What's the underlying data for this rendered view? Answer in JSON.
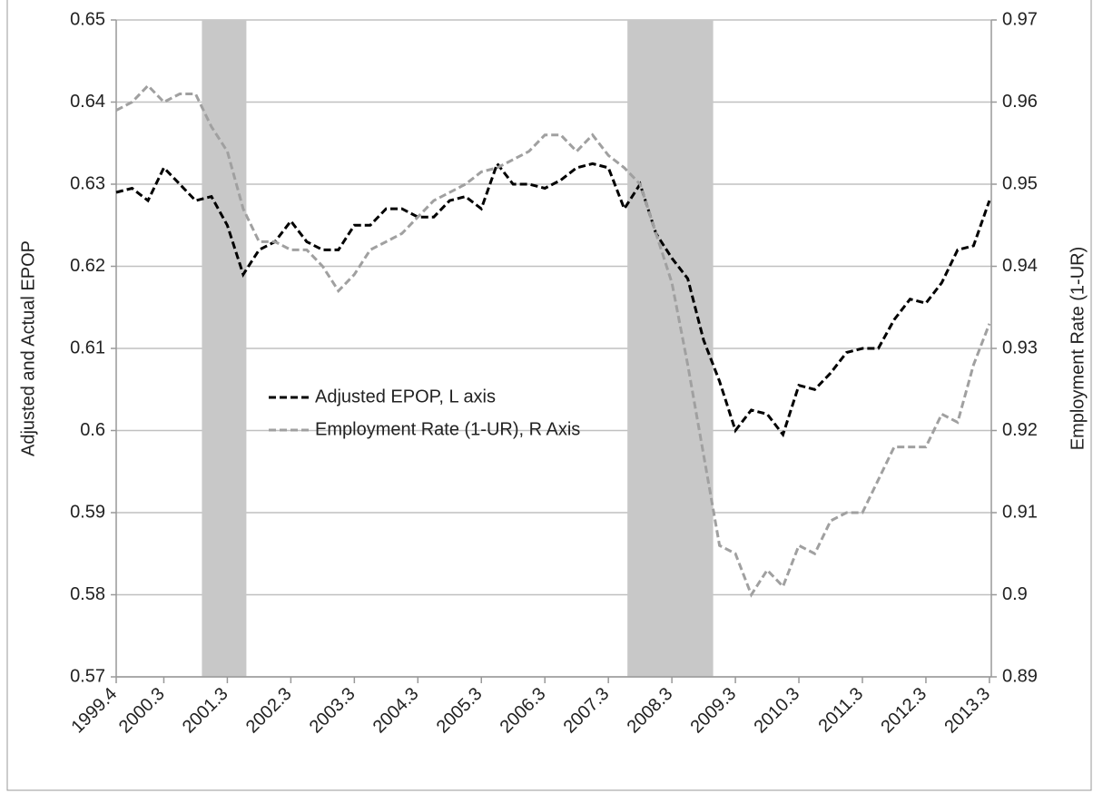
{
  "chart_data": {
    "type": "line",
    "ylabel": "Adjusted and Actual EPOP",
    "y2label": "Employment Rate (1-UR)",
    "x": [
      1999.75,
      2000.0,
      2000.25,
      2000.5,
      2000.75,
      2001.0,
      2001.25,
      2001.5,
      2001.75,
      2002.0,
      2002.25,
      2002.5,
      2002.75,
      2003.0,
      2003.25,
      2003.5,
      2003.75,
      2004.0,
      2004.25,
      2004.5,
      2004.75,
      2005.0,
      2005.25,
      2005.5,
      2005.75,
      2006.0,
      2006.25,
      2006.5,
      2006.75,
      2007.0,
      2007.25,
      2007.5,
      2007.75,
      2008.0,
      2008.25,
      2008.5,
      2008.75,
      2009.0,
      2009.25,
      2009.5,
      2009.75,
      2010.0,
      2010.25,
      2010.5,
      2010.75,
      2011.0,
      2011.25,
      2011.5,
      2011.75,
      2012.0,
      2012.25,
      2012.5,
      2012.75,
      2013.0,
      2013.25,
      2013.5
    ],
    "series": [
      {
        "name": "Adjusted EPOP, L axis",
        "color": "#000000",
        "axis": "y",
        "values": [
          0.629,
          0.6295,
          0.628,
          0.632,
          0.63,
          0.628,
          0.6285,
          0.625,
          0.619,
          0.622,
          0.623,
          0.6255,
          0.623,
          0.622,
          0.622,
          0.625,
          0.625,
          0.627,
          0.627,
          0.626,
          0.626,
          0.628,
          0.6285,
          0.627,
          0.6325,
          0.63,
          0.63,
          0.6295,
          0.6305,
          0.632,
          0.6325,
          0.632,
          0.627,
          0.63,
          0.624,
          0.621,
          0.6185,
          0.611,
          0.606,
          0.6,
          0.6025,
          0.602,
          0.5995,
          0.6055,
          0.605,
          0.607,
          0.6095,
          0.61,
          0.61,
          0.6135,
          0.616,
          0.6155,
          0.618,
          0.622,
          0.6225,
          0.628
        ]
      },
      {
        "name": "Employment Rate (1-UR), R Axis",
        "color": "#a0a0a0",
        "axis": "y2",
        "values": [
          0.959,
          0.96,
          0.962,
          0.96,
          0.961,
          0.961,
          0.957,
          0.954,
          0.947,
          0.943,
          0.943,
          0.942,
          0.942,
          0.94,
          0.937,
          0.939,
          0.942,
          0.943,
          0.944,
          0.946,
          0.948,
          0.949,
          0.95,
          0.9515,
          0.952,
          0.953,
          0.954,
          0.956,
          0.956,
          0.954,
          0.956,
          0.9535,
          0.952,
          0.95,
          0.944,
          0.938,
          0.928,
          0.917,
          0.906,
          0.905,
          0.9,
          0.903,
          0.901,
          0.906,
          0.905,
          0.909,
          0.91,
          0.91,
          0.914,
          0.918,
          0.918,
          0.918,
          0.922,
          0.921,
          0.928,
          0.933
        ]
      }
    ],
    "shaded_regions": [
      [
        2001.1,
        2001.8
      ],
      [
        2007.8,
        2009.15
      ]
    ],
    "shade_color": "#c8c8c8",
    "xlim": [
      1999.75,
      2013.53
    ],
    "xticks": [
      {
        "value": 1999.75,
        "label": "1999.4"
      },
      {
        "value": 2000.5,
        "label": "2000.3"
      },
      {
        "value": 2001.5,
        "label": "2001.3"
      },
      {
        "value": 2002.5,
        "label": "2002.3"
      },
      {
        "value": 2003.5,
        "label": "2003.3"
      },
      {
        "value": 2004.5,
        "label": "2004.3"
      },
      {
        "value": 2005.5,
        "label": "2005.3"
      },
      {
        "value": 2006.5,
        "label": "2006.3"
      },
      {
        "value": 2007.5,
        "label": "2007.3"
      },
      {
        "value": 2008.5,
        "label": "2008.3"
      },
      {
        "value": 2009.5,
        "label": "2009.3"
      },
      {
        "value": 2010.5,
        "label": "2010.3"
      },
      {
        "value": 2011.5,
        "label": "2011.3"
      },
      {
        "value": 2012.5,
        "label": "2012.3"
      },
      {
        "value": 2013.5,
        "label": "2013.3"
      }
    ],
    "ylim": [
      0.57,
      0.65
    ],
    "yticks": [
      0.57,
      0.58,
      0.59,
      0.6,
      0.61,
      0.62,
      0.63,
      0.64,
      0.65
    ],
    "y2lim": [
      0.89,
      0.97
    ],
    "y2ticks": [
      0.89,
      0.9,
      0.91,
      0.92,
      0.93,
      0.94,
      0.95,
      0.96,
      0.97
    ],
    "grid": true,
    "dashed": true
  }
}
